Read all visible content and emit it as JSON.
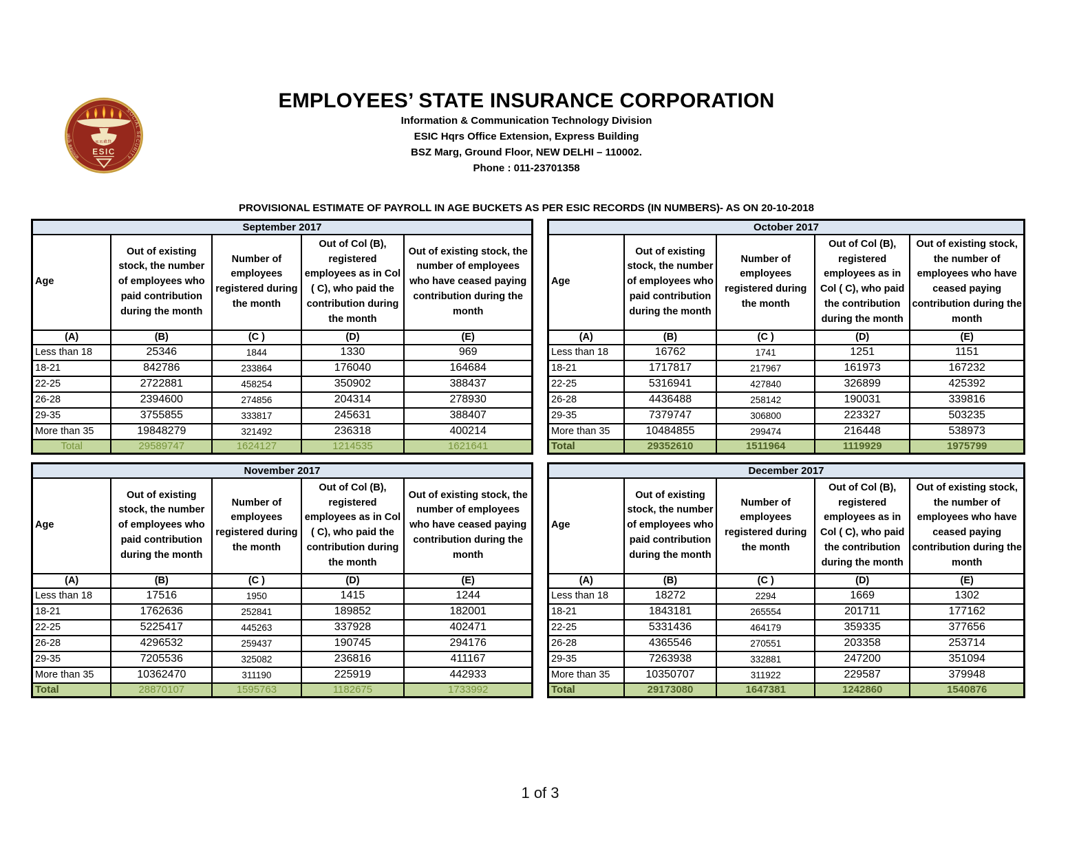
{
  "header": {
    "title": "EMPLOYEES’ STATE INSURANCE CORPORATION",
    "subtitle_line1": "Information & Communication Technology Division",
    "subtitle_line2": "ESIC Hqrs Office Extension, Express Building",
    "subtitle_line3": "BSZ Marg, Ground Floor, NEW DELHI – 110002.",
    "subtitle_line4": "Phone : 011-23701358",
    "report_title": "PROVISIONAL ESTIMATE OF PAYROLL IN AGE BUCKETS AS PER ESIC RECORDS (IN NUMBERS)- AS ON 20-10-2018"
  },
  "logo": {
    "name": "esic-emblem",
    "esic_label": "ESIC",
    "curved_text_right": "SOCIAL SECURITY",
    "curved_text_left": "सामाजिक सुरक्षा",
    "small_text": "क.रा.बी.नि.",
    "colors": {
      "maroon": "#96281C",
      "gold": "#C49A3C",
      "cream": "#F2E4BE",
      "flame_orange": "#EF8A1D",
      "flame_yellow": "#FFD34D"
    }
  },
  "column_headers": {
    "age": "Age",
    "b": "Out of existing stock, the number of employees who paid contribution during the month",
    "c": "Number of employees registered during the month",
    "d": "Out of Col (B), registered employees as in Col ( C), who paid the contribution during the month",
    "e": "Out of existing stock, the number of  employees  who have ceased paying contribution during the month",
    "letters": [
      "(A)",
      "(B)",
      "(C )",
      "(D)",
      "(E)"
    ]
  },
  "tables": [
    {
      "month": "September 2017",
      "total_label": "Total",
      "rows": [
        [
          "Less than 18",
          "25346",
          "1844",
          "1330",
          "969"
        ],
        [
          "18-21",
          "842786",
          "233864",
          "176040",
          "164684"
        ],
        [
          "22-25",
          "2722881",
          "458254",
          "350902",
          "388437"
        ],
        [
          "26-28",
          "2394600",
          "274856",
          "204314",
          "278930"
        ],
        [
          "29-35",
          "3755855",
          "333817",
          "245631",
          "388407"
        ],
        [
          "More than 35",
          "19848279",
          "321492",
          "236318",
          "400214"
        ]
      ],
      "total": [
        "29589747",
        "1624127",
        "1214535",
        "1621641"
      ]
    },
    {
      "month": "October 2017",
      "total_label": "Total",
      "rows": [
        [
          "Less than 18",
          "16762",
          "1741",
          "1251",
          "1151"
        ],
        [
          "18-21",
          "1717817",
          "217967",
          "161973",
          "167232"
        ],
        [
          "22-25",
          "5316941",
          "427840",
          "326899",
          "425392"
        ],
        [
          "26-28",
          "4436488",
          "258142",
          "190031",
          "339816"
        ],
        [
          "29-35",
          "7379747",
          "306800",
          "223327",
          "503235"
        ],
        [
          "More than 35",
          "10484855",
          "299474",
          "216448",
          "538973"
        ]
      ],
      "total": [
        "29352610",
        "1511964",
        "1119929",
        "1975799"
      ]
    },
    {
      "month": "November 2017",
      "total_label": "Total",
      "rows": [
        [
          "Less than 18",
          "17516",
          "1950",
          "1415",
          "1244"
        ],
        [
          "18-21",
          "1762636",
          "252841",
          "189852",
          "182001"
        ],
        [
          "22-25",
          "5225417",
          "445263",
          "337928",
          "402471"
        ],
        [
          "26-28",
          "4296532",
          "259437",
          "190745",
          "294176"
        ],
        [
          "29-35",
          "7205536",
          "325082",
          "236816",
          "411167"
        ],
        [
          "More than 35",
          "10362470",
          "311190",
          "225919",
          "442933"
        ]
      ],
      "total": [
        "28870107",
        "1595763",
        "1182675",
        "1733992"
      ]
    },
    {
      "month": "December 2017",
      "total_label": "Total",
      "rows": [
        [
          "Less than 18",
          "18272",
          "2294",
          "1669",
          "1302"
        ],
        [
          "18-21",
          "1843181",
          "265554",
          "201711",
          "177162"
        ],
        [
          "22-25",
          "5331436",
          "464179",
          "359335",
          "377656"
        ],
        [
          "26-28",
          "4365546",
          "270551",
          "203358",
          "253714"
        ],
        [
          "29-35",
          "7263938",
          "332881",
          "247200",
          "351094"
        ],
        [
          "More than 35",
          "10350707",
          "311922",
          "229587",
          "379948"
        ]
      ],
      "total": [
        "29173080",
        "1647381",
        "1242860",
        "1540876"
      ]
    }
  ],
  "footer": {
    "page_indicator": "1 of 3"
  },
  "colors": {
    "month_header_bg": "#DBE5F1",
    "total_row_bg": "#C5D89F",
    "total_text": "#77933C",
    "total_text_bold": "#4F6228",
    "border": "#000000"
  }
}
